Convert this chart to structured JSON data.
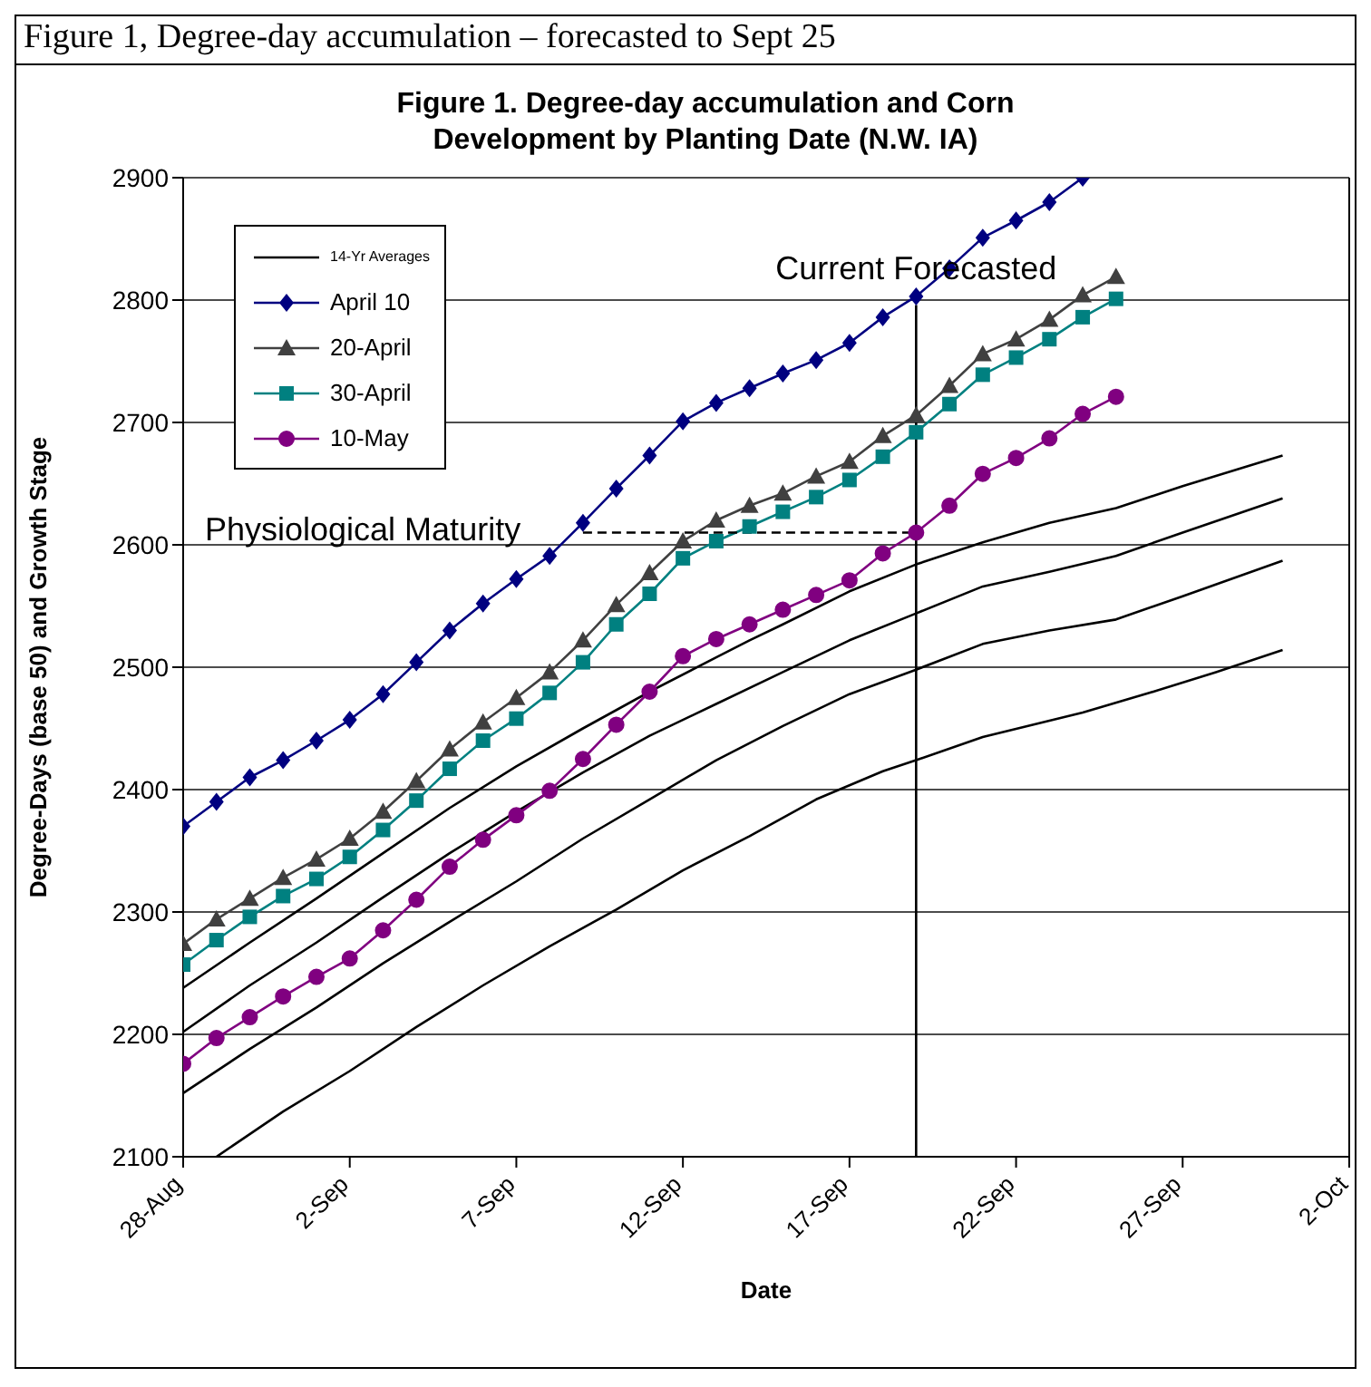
{
  "chart_data": {
    "type": "line",
    "subtitle": "Figure 1, Degree-day accumulation – forecasted to Sept 25",
    "title": "Figure 1.  Degree-day accumulation and Corn Development by Planting Date (N.W. IA)",
    "xlabel": "Date",
    "ylabel": "Degree-Days (base 50) and Growth Stage",
    "xlim": [
      "--08-28",
      "--10-02"
    ],
    "xticks": [
      {
        "value": "--08-28",
        "label": "28-Aug"
      },
      {
        "value": "--09-02",
        "label": "2-Sep"
      },
      {
        "value": "--09-07",
        "label": "7-Sep"
      },
      {
        "value": "--09-12",
        "label": "12-Sep"
      },
      {
        "value": "--09-17",
        "label": "17-Sep"
      },
      {
        "value": "--09-22",
        "label": "22-Sep"
      },
      {
        "value": "--09-27",
        "label": "27-Sep"
      },
      {
        "value": "--10-02",
        "label": "2-Oct"
      }
    ],
    "ylim": [
      2100,
      2900
    ],
    "yticks": [
      2100,
      2200,
      2300,
      2400,
      2500,
      2600,
      2700,
      2800,
      2900
    ],
    "grid": "y",
    "legend": "top left",
    "series": [
      {
        "name": "14-Yr Averages",
        "color": "#000000",
        "marker": "none",
        "x": [
          "--08-28",
          "--08-30",
          "--09-01",
          "--09-03",
          "--09-05",
          "--09-07",
          "--09-09",
          "--09-11",
          "--09-13",
          "--09-14",
          "--09-15",
          "--09-17",
          "--09-19",
          "--09-21",
          "--09-23",
          "--09-25",
          "--09-27",
          "--09-30"
        ],
        "values": [
          2238,
          2275,
          2311,
          2348,
          2385,
          2419,
          2450,
          2480,
          2508,
          2522,
          2535,
          2562,
          2584,
          2602,
          2618,
          2630,
          2648,
          2673
        ]
      },
      {
        "color": "#000000",
        "marker": "none",
        "x": [
          "--08-28",
          "--08-30",
          "--09-01",
          "--09-03",
          "--09-05",
          "--09-07",
          "--09-09",
          "--09-11",
          "--09-13",
          "--09-15",
          "--09-17",
          "--09-19",
          "--09-21",
          "--09-23",
          "--09-25",
          "--09-27",
          "--09-30"
        ],
        "values": [
          2202,
          2240,
          2275,
          2312,
          2348,
          2382,
          2414,
          2444,
          2470,
          2496,
          2522,
          2544,
          2566,
          2578,
          2591,
          2610,
          2638
        ]
      },
      {
        "color": "#000000",
        "marker": "none",
        "x": [
          "--08-28",
          "--08-30",
          "--09-01",
          "--09-03",
          "--09-05",
          "--09-07",
          "--09-09",
          "--09-11",
          "--09-13",
          "--09-15",
          "--09-17",
          "--09-19",
          "--09-21",
          "--09-23",
          "--09-25",
          "--09-27",
          "--09-30"
        ],
        "values": [
          2152,
          2188,
          2222,
          2258,
          2292,
          2325,
          2360,
          2392,
          2424,
          2452,
          2478,
          2498,
          2519,
          2530,
          2539,
          2558,
          2587
        ]
      },
      {
        "color": "#000000",
        "marker": "none",
        "x": [
          "--08-29",
          "--08-31",
          "--09-02",
          "--09-04",
          "--09-06",
          "--09-08",
          "--09-10",
          "--09-12",
          "--09-14",
          "--09-16",
          "--09-18",
          "--09-19",
          "--09-21",
          "--09-24",
          "--09-26",
          "--09-28",
          "--09-30"
        ],
        "values": [
          2100,
          2137,
          2170,
          2206,
          2240,
          2272,
          2302,
          2334,
          2362,
          2392,
          2415,
          2424,
          2443,
          2463,
          2479,
          2496,
          2514
        ]
      },
      {
        "name": "April 10",
        "color": "#000080",
        "marker": "diamond",
        "x": [
          "--08-28",
          "--08-29",
          "--08-30",
          "--08-31",
          "--09-01",
          "--09-02",
          "--09-03",
          "--09-04",
          "--09-05",
          "--09-06",
          "--09-07",
          "--09-08",
          "--09-09",
          "--09-10",
          "--09-11",
          "--09-12",
          "--09-13",
          "--09-14",
          "--09-15",
          "--09-16",
          "--09-17",
          "--09-18",
          "--09-19",
          "--09-20",
          "--09-21",
          "--09-22",
          "--09-23",
          "--09-24"
        ],
        "values": [
          2370,
          2390,
          2410,
          2424,
          2440,
          2457,
          2478,
          2504,
          2530,
          2552,
          2572,
          2591,
          2618,
          2646,
          2673,
          2701,
          2716,
          2728,
          2740,
          2751,
          2765,
          2786,
          2803,
          2826,
          2851,
          2865,
          2880,
          2900
        ]
      },
      {
        "name": "20-April",
        "color": "#404040",
        "marker": "triangle",
        "x": [
          "--08-28",
          "--08-29",
          "--08-30",
          "--08-31",
          "--09-01",
          "--09-02",
          "--09-03",
          "--09-04",
          "--09-05",
          "--09-06",
          "--09-07",
          "--09-08",
          "--09-09",
          "--09-10",
          "--09-11",
          "--09-12",
          "--09-13",
          "--09-14",
          "--09-15",
          "--09-16",
          "--09-17",
          "--09-18",
          "--09-19",
          "--09-20",
          "--09-21",
          "--09-22",
          "--09-23",
          "--09-24",
          "--09-25"
        ],
        "values": [
          2274,
          2294,
          2311,
          2328,
          2343,
          2360,
          2382,
          2407,
          2433,
          2455,
          2475,
          2496,
          2522,
          2551,
          2577,
          2603,
          2620,
          2632,
          2642,
          2656,
          2668,
          2689,
          2706,
          2730,
          2756,
          2768,
          2784,
          2804,
          2819
        ]
      },
      {
        "name": "30-April",
        "color": "#008080",
        "marker": "square",
        "x": [
          "--08-28",
          "--08-29",
          "--08-30",
          "--08-31",
          "--09-01",
          "--09-02",
          "--09-03",
          "--09-04",
          "--09-05",
          "--09-06",
          "--09-07",
          "--09-08",
          "--09-09",
          "--09-10",
          "--09-11",
          "--09-12",
          "--09-13",
          "--09-14",
          "--09-15",
          "--09-16",
          "--09-17",
          "--09-18",
          "--09-19",
          "--09-20",
          "--09-21",
          "--09-22",
          "--09-23",
          "--09-24",
          "--09-25"
        ],
        "values": [
          2257,
          2277,
          2296,
          2313,
          2327,
          2345,
          2367,
          2391,
          2417,
          2440,
          2458,
          2479,
          2504,
          2535,
          2560,
          2589,
          2603,
          2615,
          2627,
          2639,
          2653,
          2672,
          2692,
          2715,
          2739,
          2753,
          2768,
          2786,
          2801
        ]
      },
      {
        "name": "10-May",
        "color": "#800080",
        "marker": "circle",
        "x": [
          "--08-28",
          "--08-29",
          "--08-30",
          "--08-31",
          "--09-01",
          "--09-02",
          "--09-03",
          "--09-04",
          "--09-05",
          "--09-06",
          "--09-07",
          "--09-08",
          "--09-09",
          "--09-10",
          "--09-11",
          "--09-12",
          "--09-13",
          "--09-14",
          "--09-15",
          "--09-16",
          "--09-17",
          "--09-18",
          "--09-19",
          "--09-20",
          "--09-21",
          "--09-22",
          "--09-23",
          "--09-24",
          "--09-25"
        ],
        "values": [
          2176,
          2197,
          2214,
          2231,
          2247,
          2262,
          2285,
          2310,
          2337,
          2359,
          2379,
          2399,
          2425,
          2453,
          2480,
          2509,
          2523,
          2535,
          2547,
          2559,
          2571,
          2593,
          2610,
          2632,
          2658,
          2671,
          2687,
          2707,
          2721
        ]
      },
      {
        "color": "#000000",
        "marker": "none",
        "line_style": "dashed",
        "x": [
          "--09-09",
          "--09-19"
        ],
        "values": [
          2610,
          2610
        ]
      }
    ],
    "ref_lines": [
      {
        "axis": "x",
        "value": "--09-19",
        "label": "Current  Forecasted",
        "color": "#000000"
      }
    ],
    "annotations": [
      "Physiological Maturity"
    ]
  }
}
